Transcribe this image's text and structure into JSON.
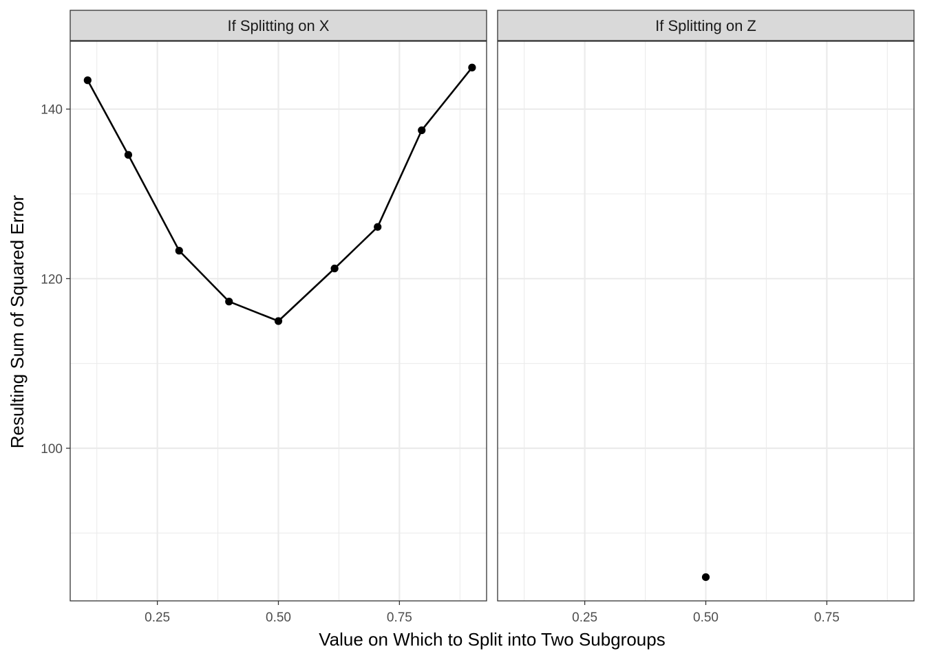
{
  "chart_data": {
    "type": "line",
    "xlabel": "Value on Which to Split into Two Subgroups",
    "ylabel": "Resulting Sum of Squared Error",
    "ylim": [
      82,
      148
    ],
    "y_major_ticks": [
      100,
      120,
      140
    ],
    "y_minor_ticks": [
      90,
      110,
      130
    ],
    "y_tick_labels": [
      "100",
      "120",
      "140"
    ],
    "grid": true,
    "panels": [
      {
        "strip_label": "If Splitting on X",
        "xlim": [
          0.07,
          0.93
        ],
        "x_major_ticks": [
          0.25,
          0.5,
          0.75
        ],
        "x_minor_ticks": [
          0.125,
          0.375,
          0.625,
          0.875
        ],
        "x_tick_labels": [
          "0.25",
          "0.50",
          "0.75"
        ],
        "connect": true,
        "x": [
          0.106,
          0.19,
          0.295,
          0.398,
          0.5,
          0.616,
          0.705,
          0.796,
          0.9
        ],
        "y": [
          143.4,
          134.6,
          123.3,
          117.3,
          115.0,
          121.2,
          126.1,
          137.5,
          144.9
        ]
      },
      {
        "strip_label": "If Splitting on Z",
        "xlim": [
          0.07,
          0.93
        ],
        "x_major_ticks": [
          0.25,
          0.5,
          0.75
        ],
        "x_minor_ticks": [
          0.125,
          0.375,
          0.625,
          0.875
        ],
        "x_tick_labels": [
          "0.25",
          "0.50",
          "0.75"
        ],
        "connect": false,
        "x": [
          0.5
        ],
        "y": [
          84.8
        ]
      }
    ]
  }
}
